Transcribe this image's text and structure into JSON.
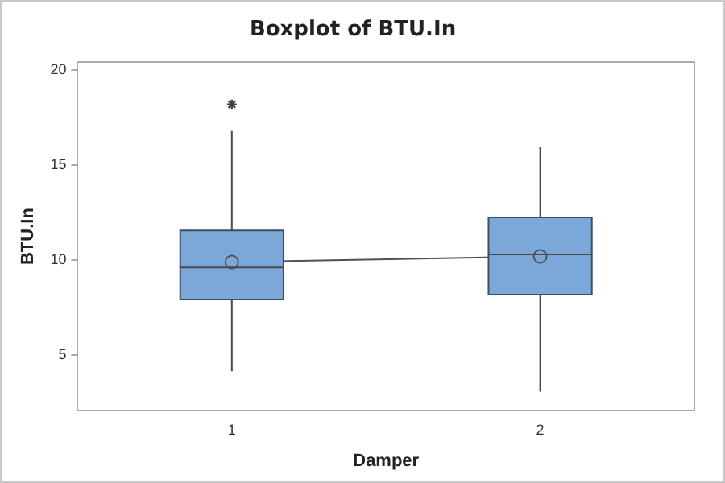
{
  "chart_data": {
    "type": "box",
    "title": "Boxplot of BTU.In",
    "xlabel": "Damper",
    "ylabel": "BTU.In",
    "categories": [
      "1",
      "2"
    ],
    "series": [
      {
        "color": "#7ba7d9",
        "boxes": [
          {
            "low": 4.16,
            "q1": 7.94,
            "median": 9.62,
            "q3": 11.56,
            "high": 16.78,
            "outliers": [
              18.18
            ]
          },
          {
            "low": 3.09,
            "q1": 8.19,
            "median": 10.3,
            "q3": 12.25,
            "high": 15.96
          }
        ]
      },
      {
        "type": "line",
        "color": "#505050",
        "values": [
          9.9,
          10.2
        ]
      }
    ],
    "ylim": [
      2.1,
      20.4
    ],
    "yticks": [
      5,
      10,
      15,
      20
    ],
    "grid": false,
    "legend": false,
    "marker": "circle"
  }
}
